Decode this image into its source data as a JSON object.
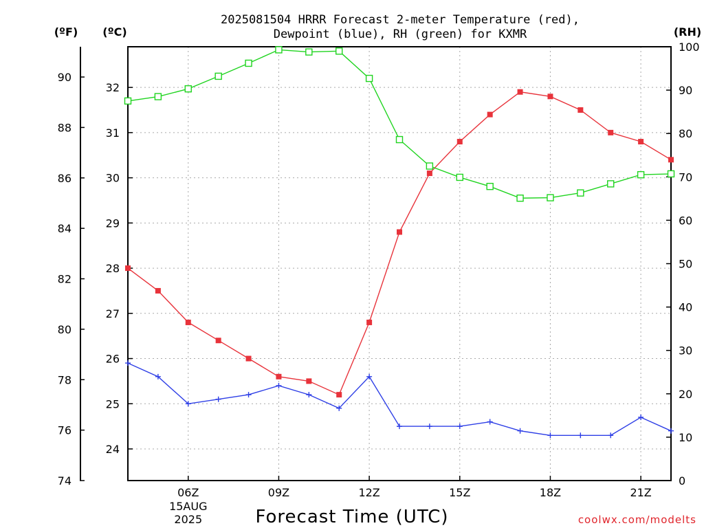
{
  "chart_data": {
    "type": "line",
    "title_line1": "2025081504 HRRR Forecast 2-meter Temperature (red),",
    "title_line2": "Dewpoint (blue), RH (green) for KXMR",
    "xlabel": "Forecast Time (UTC)",
    "credit": "coolwx.com/modelts",
    "units": {
      "f": "(ºF)",
      "c": "(ºC)",
      "rh": "(RH)"
    },
    "x_hours": [
      4,
      5,
      6,
      7,
      8,
      9,
      10,
      11,
      12,
      13,
      14,
      15,
      16,
      17,
      18,
      19,
      20,
      21,
      22
    ],
    "x_ticks": [
      {
        "hour": 6,
        "label": "06Z",
        "sub1": "15AUG",
        "sub2": "2025"
      },
      {
        "hour": 9,
        "label": "09Z"
      },
      {
        "hour": 12,
        "label": "12Z"
      },
      {
        "hour": 15,
        "label": "15Z"
      },
      {
        "hour": 18,
        "label": "18Z"
      },
      {
        "hour": 21,
        "label": "21Z"
      }
    ],
    "xlim": [
      4,
      22
    ],
    "ylim_f": [
      74,
      91.2
    ],
    "ylim_c": [
      23.3,
      32.9
    ],
    "ylim_rh": [
      0,
      100
    ],
    "yticks_f": [
      74,
      76,
      78,
      80,
      82,
      84,
      86,
      88,
      90
    ],
    "yticks_c": [
      24,
      25,
      26,
      27,
      28,
      29,
      30,
      31,
      32
    ],
    "yticks_rh": [
      0,
      10,
      20,
      30,
      40,
      50,
      60,
      70,
      80,
      90,
      100
    ],
    "grid": true,
    "series": [
      {
        "name": "Temperature",
        "color": "#e8333b",
        "marker": "square-filled",
        "axis": "c",
        "values": [
          28.0,
          27.5,
          26.8,
          26.4,
          26.0,
          25.6,
          25.5,
          25.2,
          26.8,
          28.8,
          30.1,
          30.8,
          31.4,
          31.9,
          31.8,
          31.5,
          31.0,
          30.8,
          30.4
        ]
      },
      {
        "name": "Dewpoint",
        "color": "#2d3ee6",
        "marker": "plus",
        "axis": "c",
        "values": [
          25.9,
          25.6,
          25.0,
          25.1,
          25.2,
          25.4,
          25.2,
          24.9,
          25.6,
          24.5,
          24.5,
          24.5,
          24.6,
          24.4,
          24.3,
          24.3,
          24.3,
          24.7,
          24.4
        ]
      },
      {
        "name": "RH",
        "color": "#1fd41f",
        "marker": "square-open",
        "axis": "rh",
        "values": [
          87.5,
          88.5,
          90.3,
          93.2,
          96.2,
          99.3,
          98.8,
          99.0,
          92.7,
          78.6,
          72.5,
          69.9,
          67.8,
          65.1,
          65.2,
          66.3,
          68.4,
          70.5,
          70.7
        ]
      }
    ]
  }
}
